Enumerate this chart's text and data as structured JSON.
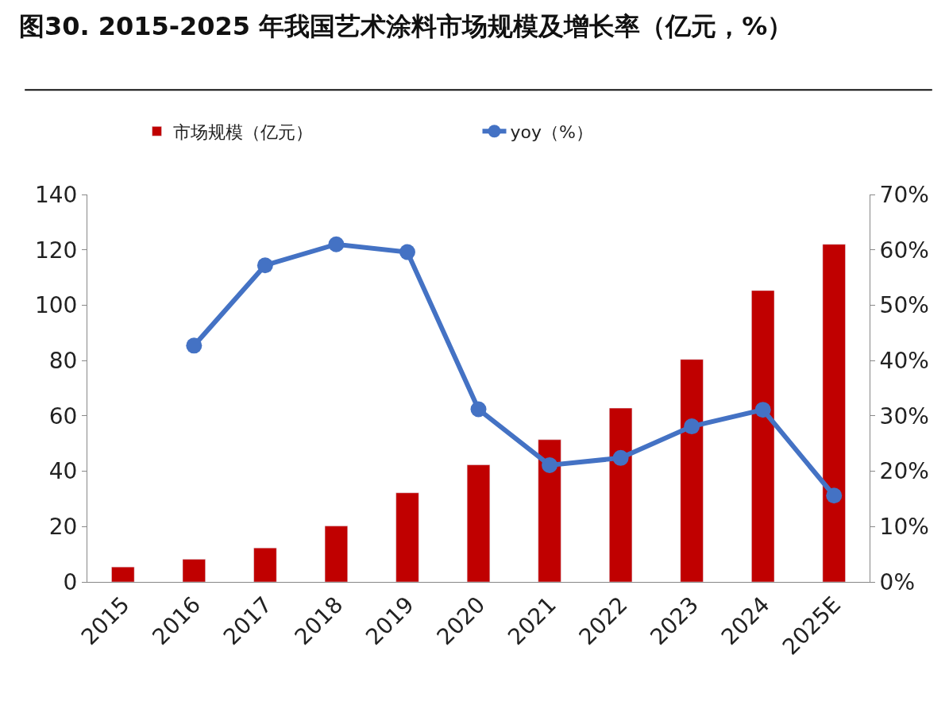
{
  "chart_data": {
    "type": "bar",
    "title": "图30. 2015-2025 年我国艺术涂料市场规模及增长率（亿元，%）",
    "categories": [
      "2015",
      "2016",
      "2017",
      "2018",
      "2019",
      "2020",
      "2021",
      "2022",
      "2023",
      "2024",
      "2025E"
    ],
    "series": [
      {
        "name": "市场规模（亿元）",
        "color": "#c00000",
        "values": [
          5.4,
          8.2,
          12.3,
          20.2,
          32.2,
          42.3,
          51.4,
          62.8,
          80.4,
          105.3,
          122.0
        ]
      },
      {
        "name": "yoy（%）",
        "type": "line",
        "axis": "y2",
        "color": "#4472c4",
        "marker": "circle",
        "values": [
          null,
          42.7,
          57.2,
          61.0,
          59.6,
          31.2,
          21.1,
          22.4,
          28.1,
          31.1,
          15.6
        ]
      }
    ],
    "ylim": [
      0,
      140
    ],
    "yticks": [
      0,
      20,
      40,
      60,
      80,
      100,
      120,
      140
    ],
    "y2lim": [
      0,
      70
    ],
    "y2ticks": [
      {
        "value": 0,
        "label": "0%"
      },
      {
        "value": 10,
        "label": "10%"
      },
      {
        "value": 20,
        "label": "20%"
      },
      {
        "value": 30,
        "label": "30%"
      },
      {
        "value": 40,
        "label": "40%"
      },
      {
        "value": 50,
        "label": "50%"
      },
      {
        "value": 60,
        "label": "60%"
      },
      {
        "value": 70,
        "label": "70%"
      }
    ],
    "legend": "top"
  }
}
